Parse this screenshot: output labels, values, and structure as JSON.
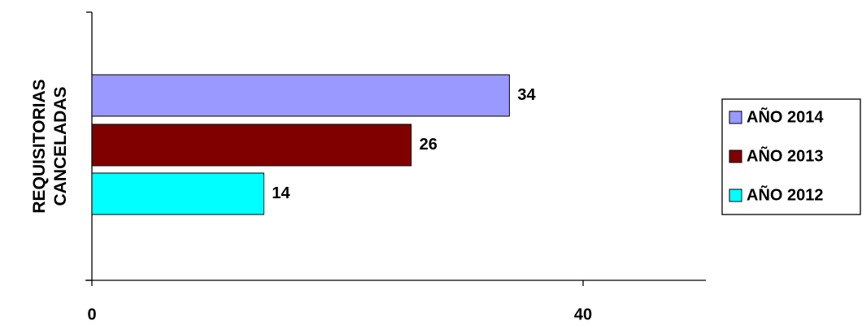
{
  "chart_data": {
    "type": "hbar",
    "categories": [
      "REQUISITORIAS CANCELADAS"
    ],
    "series": [
      {
        "name": "AÑO 2014",
        "color": "#9999ff",
        "values": [
          34
        ]
      },
      {
        "name": "AÑO 2013",
        "color": "#800000",
        "values": [
          26
        ]
      },
      {
        "name": "AÑO 2012",
        "color": "#00ffff",
        "values": [
          14
        ]
      }
    ],
    "xlim": [
      0,
      50
    ],
    "xticks": [
      0,
      40
    ],
    "legend": "right"
  }
}
